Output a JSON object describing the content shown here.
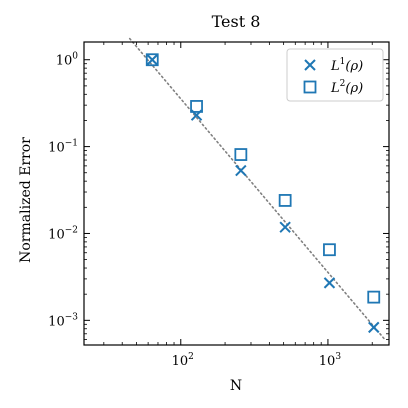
{
  "chart_data": {
    "type": "scatter",
    "title": "Test 8",
    "xlabel": "N",
    "ylabel": "Normalized Error",
    "xscale": "log",
    "yscale": "log",
    "xlim": [
      22,
      2600
    ],
    "ylim": [
      0.00052,
      1.6
    ],
    "grid": false,
    "legend_position": "top-right",
    "x_ticks": [
      {
        "value": 100,
        "base": "10",
        "exp": "2"
      },
      {
        "value": 1000,
        "base": "10",
        "exp": "3"
      }
    ],
    "y_ticks": [
      {
        "value": 1,
        "base": "10",
        "exp": "0"
      },
      {
        "value": 0.1,
        "base": "10",
        "exp": "−1"
      },
      {
        "value": 0.01,
        "base": "10",
        "exp": "−2"
      },
      {
        "value": 0.001,
        "base": "10",
        "exp": "−3"
      }
    ],
    "series": [
      {
        "name_base": "L",
        "name_sup": "1",
        "name_arg": "(ρ)",
        "marker": "x",
        "color": "#1f77b4",
        "x": [
          64,
          128,
          256,
          512,
          1024,
          2048
        ],
        "y": [
          1.0,
          0.23,
          0.053,
          0.0118,
          0.0027,
          0.00083
        ]
      },
      {
        "name_base": "L",
        "name_sup": "2",
        "name_arg": "(ρ)",
        "marker": "square",
        "color": "#1f77b4",
        "x": [
          64,
          128,
          256,
          512,
          1024,
          2048
        ],
        "y": [
          1.0,
          0.29,
          0.081,
          0.024,
          0.0065,
          0.00185
        ]
      }
    ],
    "reference_line": {
      "style": "dotted",
      "color": "#808080",
      "x": [
        45,
        2400
      ],
      "y": [
        1.75,
        0.00062
      ]
    }
  }
}
